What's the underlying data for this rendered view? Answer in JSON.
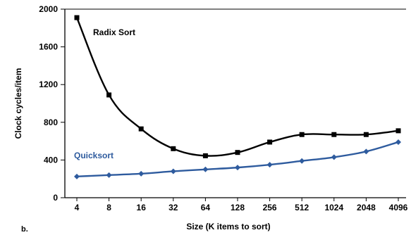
{
  "chart_data": {
    "type": "line",
    "panel_label": "b.",
    "xlabel": "Size (K items to sort)",
    "ylabel": "Clock cycles/item",
    "categories": [
      "4",
      "8",
      "16",
      "32",
      "64",
      "128",
      "256",
      "512",
      "1024",
      "2048",
      "4096"
    ],
    "yticks": [
      "0",
      "400",
      "800",
      "1200",
      "1600",
      "2000"
    ],
    "ylim": [
      0,
      2000
    ],
    "grid": false,
    "series": [
      {
        "name": "Radix Sort",
        "color": "#000000",
        "marker": "square",
        "values": [
          1910,
          1090,
          730,
          520,
          445,
          480,
          590,
          670,
          670,
          670,
          710
        ]
      },
      {
        "name": "Quicksort",
        "color": "#2e5b9e",
        "marker": "diamond",
        "values": [
          225,
          240,
          255,
          280,
          300,
          320,
          350,
          390,
          430,
          490,
          590
        ]
      }
    ]
  }
}
